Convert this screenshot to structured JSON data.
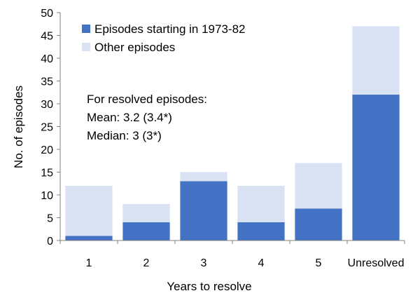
{
  "chart_data": {
    "type": "bar",
    "stacked": true,
    "categories": [
      "1",
      "2",
      "3",
      "4",
      "5",
      "Unresolved"
    ],
    "series": [
      {
        "name": "Episodes starting in 1973-82",
        "values": [
          1,
          4,
          13,
          4,
          7,
          32
        ],
        "color": "#4472C4"
      },
      {
        "name": "Other episodes",
        "values": [
          11,
          4,
          2,
          8,
          10,
          15
        ],
        "color": "#D9E2F3"
      }
    ],
    "xlabel": "Years to resolve",
    "ylabel": "No. of episodes",
    "ylim": [
      0,
      50
    ],
    "yticks": [
      0,
      5,
      10,
      15,
      20,
      25,
      30,
      35,
      40,
      45,
      50
    ],
    "grid": false,
    "legend_position": "top-left",
    "annotations": [
      "For resolved episodes:",
      "Mean: 3.2 (3.4*)",
      "Median: 3 (3*)"
    ]
  }
}
